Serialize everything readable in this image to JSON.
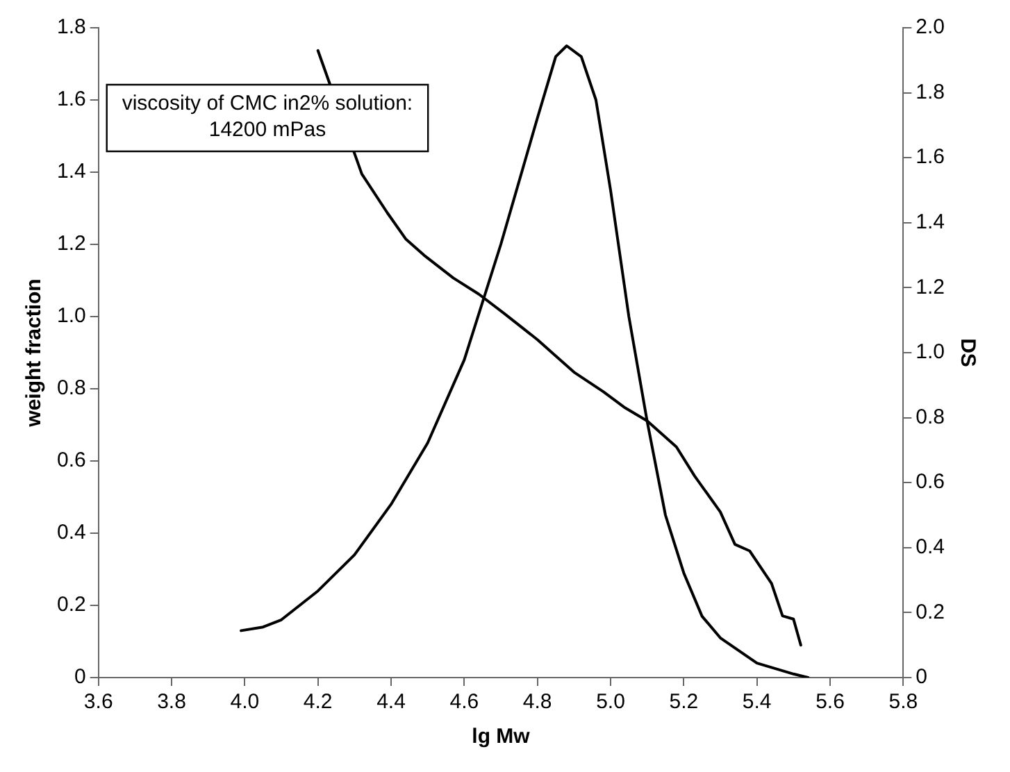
{
  "chart_data": {
    "type": "line",
    "xlabel": "lg Mw",
    "ylabel": "weight fraction",
    "y2label": "DS",
    "annotations": [
      "viscosity of CMC in2% solution:\n14200 mPas"
    ],
    "xlim": [
      3.6,
      5.8
    ],
    "xticks": [
      {
        "value": 3.6,
        "label": "3.6"
      },
      {
        "value": 3.8,
        "label": "3.8"
      },
      {
        "value": 4,
        "label": "4.0"
      },
      {
        "value": 4.2,
        "label": "4.2"
      },
      {
        "value": 4.4,
        "label": "4.4"
      },
      {
        "value": 4.6,
        "label": "4.6"
      },
      {
        "value": 4.8,
        "label": "4.8"
      },
      {
        "value": 5,
        "label": "5.0"
      },
      {
        "value": 5.2,
        "label": "5.2"
      },
      {
        "value": 5.4,
        "label": "5.4"
      },
      {
        "value": 5.6,
        "label": "5.6"
      },
      {
        "value": 5.8,
        "label": "5.8"
      }
    ],
    "ylim": [
      0,
      1.8
    ],
    "yticks": [
      0,
      {
        "value": 0.2,
        "label": "0.2"
      },
      {
        "value": 0.4,
        "label": "0.4"
      },
      {
        "value": 0.6,
        "label": "0.6"
      },
      {
        "value": 0.8,
        "label": "0.8"
      },
      {
        "value": 1,
        "label": "1.0"
      },
      {
        "value": 1.2,
        "label": "1.2"
      },
      {
        "value": 1.4,
        "label": "1.4"
      },
      {
        "value": 1.6,
        "label": "1.6"
      },
      {
        "value": 1.8,
        "label": "1.8"
      }
    ],
    "y2lim": [
      0,
      2
    ],
    "y2ticks": [
      0,
      {
        "value": 0.2,
        "label": "0.2"
      },
      {
        "value": 0.4,
        "label": "0.4"
      },
      {
        "value": 0.6,
        "label": "0.6"
      },
      {
        "value": 0.8,
        "label": "0.8"
      },
      {
        "value": 1,
        "label": "1.0"
      },
      {
        "value": 1.2,
        "label": "1.2"
      },
      {
        "value": 1.4,
        "label": "1.4"
      },
      {
        "value": 1.6,
        "label": "1.6"
      },
      {
        "value": 1.8,
        "label": "1.8"
      },
      {
        "value": 2,
        "label": "2.0"
      }
    ],
    "grid": false,
    "legend": false,
    "marker": "none",
    "line_style": "solid",
    "series": [
      {
        "color": "#000000",
        "x": [
          3.99,
          4.05,
          4.1,
          4.2,
          4.3,
          4.4,
          4.5,
          4.6,
          4.7,
          4.8,
          4.85,
          4.88,
          4.92,
          4.96,
          5.0,
          5.05,
          5.1,
          5.15,
          5.2,
          5.25,
          5.3,
          5.4,
          5.5,
          5.54
        ],
        "values": [
          0.13,
          0.14,
          0.16,
          0.24,
          0.34,
          0.48,
          0.65,
          0.88,
          1.2,
          1.55,
          1.72,
          1.75,
          1.72,
          1.6,
          1.35,
          1.0,
          0.71,
          0.45,
          0.29,
          0.17,
          0.11,
          0.04,
          0.01,
          0
        ]
      },
      {
        "color": "#000000",
        "axis": "y2",
        "x": [
          4.2,
          4.32,
          4.39,
          4.44,
          4.49,
          4.57,
          4.64,
          4.71,
          4.8,
          4.9,
          4.98,
          5.04,
          5.1,
          5.18,
          5.23,
          5.3,
          5.34,
          5.38,
          5.44,
          5.47,
          5.5,
          5.52
        ],
        "values": [
          1.93,
          1.55,
          1.43,
          1.35,
          1.3,
          1.23,
          1.18,
          1.12,
          1.04,
          0.94,
          0.88,
          0.83,
          0.79,
          0.71,
          0.62,
          0.51,
          0.41,
          0.39,
          0.29,
          0.19,
          0.18,
          0.1
        ]
      }
    ]
  }
}
